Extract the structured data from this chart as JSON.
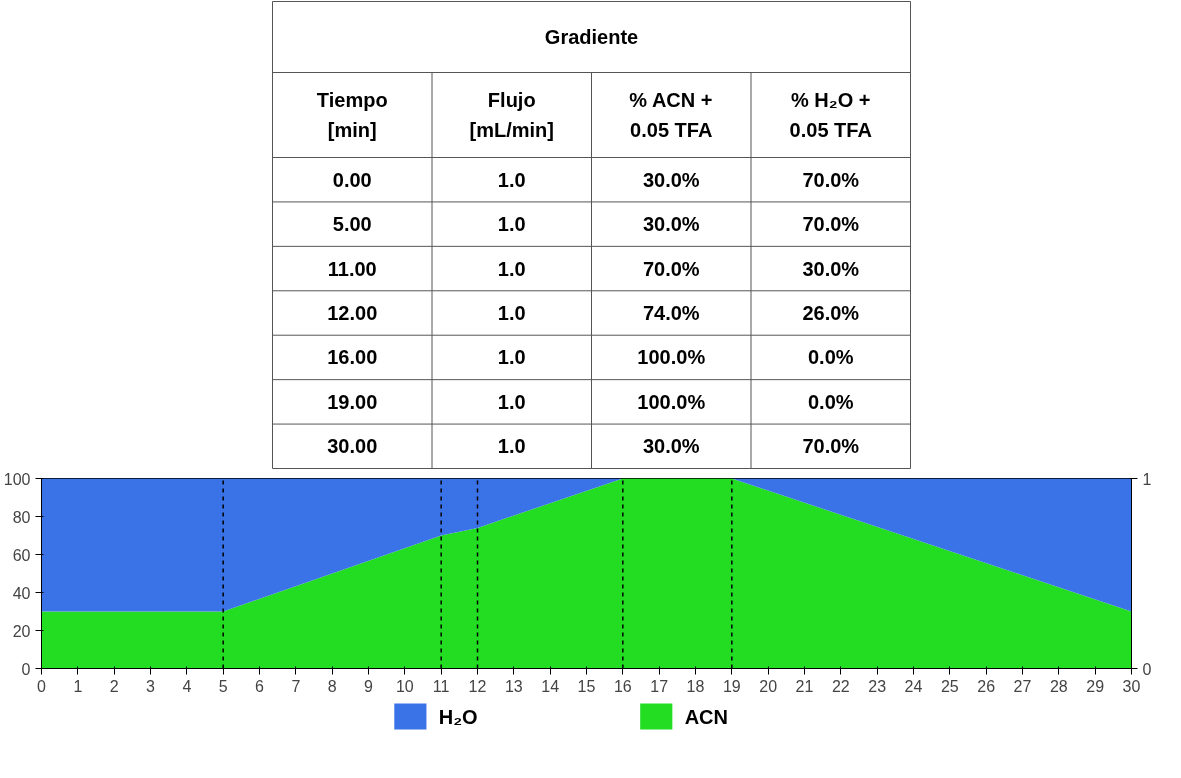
{
  "chart_data": [
    {
      "type": "other",
      "title": "Gradiente",
      "categories": [
        "Tiempo\n[min]",
        "Flujo\n[mL/min]",
        "% ACN +\n0.05 TFA",
        "% H₂O +\n0.05 TFA"
      ],
      "cell_labels": [
        [
          "0.00",
          "1.0",
          "30.0%",
          "70.0%"
        ],
        [
          "5.00",
          "1.0",
          "30.0%",
          "70.0%"
        ],
        [
          "11.00",
          "1.0",
          "70.0%",
          "30.0%"
        ],
        [
          "12.00",
          "1.0",
          "74.0%",
          "26.0%"
        ],
        [
          "16.00",
          "1.0",
          "100.0%",
          "0.0%"
        ],
        [
          "19.00",
          "1.0",
          "100.0%",
          "0.0%"
        ],
        [
          "30.00",
          "1.0",
          "30.0%",
          "70.0%"
        ]
      ]
    },
    {
      "type": "area",
      "stacked": true,
      "x": [
        0,
        5,
        11,
        12,
        16,
        19,
        30
      ],
      "series": [
        {
          "name": "ACN",
          "color": "#22dd22",
          "values": [
            30,
            30,
            70,
            74,
            100,
            100,
            30
          ]
        },
        {
          "name": "H₂O",
          "color": "#3a72e8",
          "values": [
            70,
            70,
            30,
            26,
            0,
            0,
            70
          ]
        }
      ],
      "xlim": [
        0,
        30
      ],
      "xticks": [
        0,
        1,
        2,
        3,
        4,
        5,
        6,
        7,
        8,
        9,
        10,
        11,
        12,
        13,
        14,
        15,
        16,
        17,
        18,
        19,
        20,
        21,
        22,
        23,
        24,
        25,
        26,
        27,
        28,
        29,
        30
      ],
      "ylim": [
        0,
        100
      ],
      "yticks": [
        0,
        20,
        40,
        60,
        80,
        100
      ],
      "y2lim": [
        0,
        1
      ],
      "y2ticks": [
        0,
        1
      ],
      "ref_lines": [
        {
          "axis": "x",
          "value": 5,
          "color": "#000000",
          "line_style": "dashed"
        },
        {
          "axis": "x",
          "value": 11,
          "color": "#000000",
          "line_style": "dashed"
        },
        {
          "axis": "x",
          "value": 12,
          "color": "#000000",
          "line_style": "dashed"
        },
        {
          "axis": "x",
          "value": 16,
          "color": "#000000",
          "line_style": "dashed"
        },
        {
          "axis": "x",
          "value": 19,
          "color": "#000000",
          "line_style": "dashed"
        }
      ],
      "grid": false,
      "legend": "bottom"
    }
  ]
}
